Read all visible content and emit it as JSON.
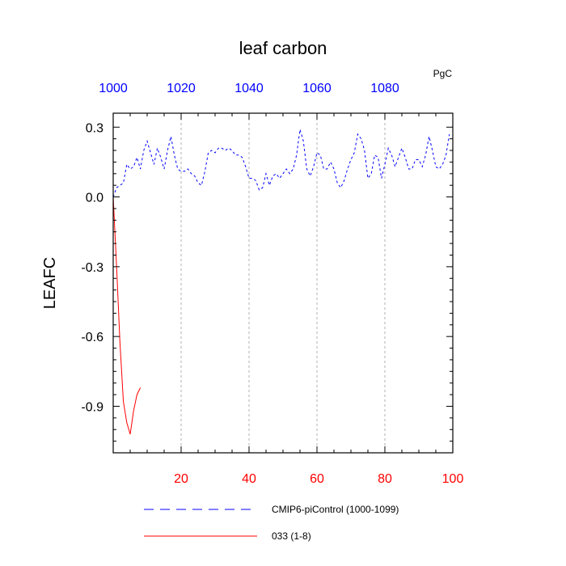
{
  "chart_data": {
    "type": "line",
    "title": "leaf carbon",
    "ylabel": "LEAFC",
    "units": "PgC",
    "ylim": [
      -1.1,
      0.36
    ],
    "yticks": [
      "0.3",
      "0.0",
      "-0.3",
      "-0.6",
      "-0.9"
    ],
    "ytick_values": [
      0.3,
      0.0,
      -0.3,
      -0.6,
      -0.9
    ],
    "x_bottom": {
      "lim": [
        0,
        100
      ],
      "ticks": [
        "20",
        "40",
        "60",
        "80",
        "100"
      ],
      "tick_values": [
        20,
        40,
        60,
        80,
        100
      ],
      "color": "#ff0000"
    },
    "x_top": {
      "lim": [
        1000,
        1100
      ],
      "ticks": [
        "1000",
        "1020",
        "1040",
        "1060",
        "1080"
      ],
      "tick_values": [
        1000,
        1020,
        1040,
        1060,
        1080
      ],
      "color": "#0000ff"
    },
    "grid": "vertical dashed at top-axis ticks",
    "legend_placement": "bottom",
    "series": [
      {
        "name": "CMIP6-piControl (1000-1099)",
        "color": "#0000ff",
        "style": "dashed",
        "axis": "top",
        "x": [
          1000,
          1001,
          1002,
          1003,
          1004,
          1005,
          1006,
          1007,
          1008,
          1009,
          1010,
          1011,
          1012,
          1013,
          1014,
          1015,
          1016,
          1017,
          1018,
          1019,
          1020,
          1021,
          1022,
          1023,
          1024,
          1025,
          1026,
          1027,
          1028,
          1029,
          1030,
          1031,
          1032,
          1033,
          1034,
          1035,
          1036,
          1037,
          1038,
          1039,
          1040,
          1041,
          1042,
          1043,
          1044,
          1045,
          1046,
          1047,
          1048,
          1049,
          1050,
          1051,
          1052,
          1053,
          1054,
          1055,
          1056,
          1057,
          1058,
          1059,
          1060,
          1061,
          1062,
          1063,
          1064,
          1065,
          1066,
          1067,
          1068,
          1069,
          1070,
          1071,
          1072,
          1073,
          1074,
          1075,
          1076,
          1077,
          1078,
          1079,
          1080,
          1081,
          1082,
          1083,
          1084,
          1085,
          1086,
          1087,
          1088,
          1089,
          1090,
          1091,
          1092,
          1093,
          1094,
          1095,
          1096,
          1097,
          1098,
          1099
        ],
        "y": [
          0.0,
          0.04,
          0.05,
          0.06,
          0.14,
          0.12,
          0.13,
          0.17,
          0.12,
          0.2,
          0.24,
          0.19,
          0.14,
          0.21,
          0.17,
          0.12,
          0.2,
          0.26,
          0.18,
          0.12,
          0.11,
          0.11,
          0.12,
          0.1,
          0.09,
          0.06,
          0.05,
          0.11,
          0.19,
          0.2,
          0.19,
          0.21,
          0.21,
          0.2,
          0.21,
          0.2,
          0.18,
          0.18,
          0.17,
          0.13,
          0.08,
          0.08,
          0.07,
          0.03,
          0.04,
          0.1,
          0.05,
          0.09,
          0.1,
          0.08,
          0.1,
          0.12,
          0.1,
          0.12,
          0.18,
          0.29,
          0.24,
          0.12,
          0.09,
          0.13,
          0.19,
          0.18,
          0.12,
          0.12,
          0.15,
          0.12,
          0.06,
          0.04,
          0.07,
          0.12,
          0.16,
          0.19,
          0.27,
          0.25,
          0.2,
          0.08,
          0.1,
          0.18,
          0.17,
          0.08,
          0.14,
          0.21,
          0.18,
          0.13,
          0.17,
          0.21,
          0.17,
          0.12,
          0.12,
          0.16,
          0.16,
          0.13,
          0.18,
          0.26,
          0.2,
          0.13,
          0.12,
          0.14,
          0.18,
          0.27
        ]
      },
      {
        "name": "033 (1-8)",
        "color": "#ff0000",
        "style": "solid",
        "axis": "bottom",
        "x": [
          0,
          1,
          2,
          3,
          4,
          5,
          6,
          7,
          8
        ],
        "y": [
          0.0,
          -0.3,
          -0.63,
          -0.88,
          -0.97,
          -1.02,
          -0.92,
          -0.85,
          -0.82
        ]
      }
    ]
  }
}
